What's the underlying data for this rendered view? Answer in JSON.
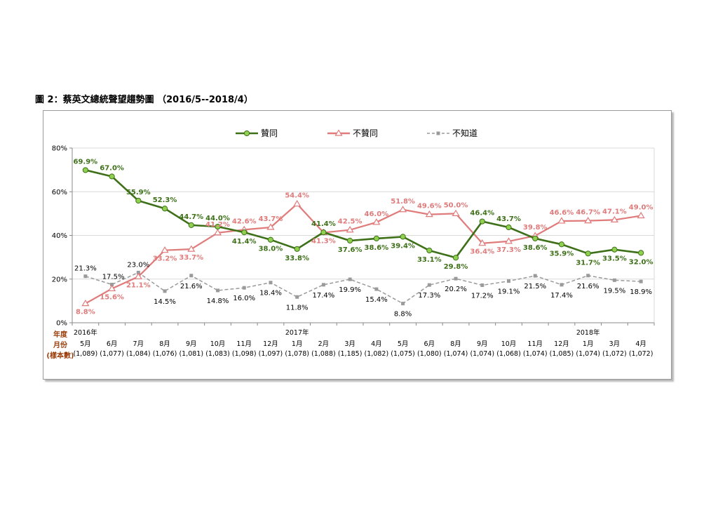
{
  "figure": {
    "title": "圖 2：蔡英文總統聲望趨勢圖 （2016/5--2018/4）"
  },
  "side_labels": [
    "年度",
    "月份",
    "(樣本數)"
  ],
  "colors": {
    "approve": "#3d7018",
    "approve_fill": "#8fd14f",
    "disapprove": "#e07b7b",
    "unknown": "#9a9a9a",
    "grid": "#d9d9d9"
  },
  "chart_data": {
    "type": "line",
    "title": "",
    "ylim": [
      0,
      80
    ],
    "yticks": [
      "0%",
      "20%",
      "40%",
      "60%",
      "80%"
    ],
    "grid": true,
    "legend_position": "top",
    "x": [
      {
        "year": "2016年",
        "month": "5月",
        "n": "(1,089)"
      },
      {
        "year": "",
        "month": "6月",
        "n": "(1,077)"
      },
      {
        "year": "",
        "month": "7月",
        "n": "(1,084)"
      },
      {
        "year": "",
        "month": "8月",
        "n": "(1,076)"
      },
      {
        "year": "",
        "month": "9月",
        "n": "(1,081)"
      },
      {
        "year": "",
        "month": "10月",
        "n": "(1,083)"
      },
      {
        "year": "",
        "month": "11月",
        "n": "(1,098)"
      },
      {
        "year": "",
        "month": "12月",
        "n": "(1,097)"
      },
      {
        "year": "2017年",
        "month": "1月",
        "n": "(1,078)"
      },
      {
        "year": "",
        "month": "2月",
        "n": "(1,088)"
      },
      {
        "year": "",
        "month": "3月",
        "n": "(1,185)"
      },
      {
        "year": "",
        "month": "4月",
        "n": "(1,082)"
      },
      {
        "year": "",
        "month": "5月",
        "n": "(1,075)"
      },
      {
        "year": "",
        "month": "6月",
        "n": "(1,080)"
      },
      {
        "year": "",
        "month": "8月",
        "n": "(1,074)"
      },
      {
        "year": "",
        "month": "9月",
        "n": "(1,074)"
      },
      {
        "year": "",
        "month": "10月",
        "n": "(1,068)"
      },
      {
        "year": "",
        "month": "11月",
        "n": "(1,074)"
      },
      {
        "year": "",
        "month": "12月",
        "n": "(1,085)"
      },
      {
        "year": "2018年",
        "month": "1月",
        "n": "(1,074)"
      },
      {
        "year": "",
        "month": "3月",
        "n": "(1,072)"
      },
      {
        "year": "",
        "month": "4月",
        "n": "(1,072)"
      }
    ],
    "series": [
      {
        "name": "贊同",
        "values": [
          69.9,
          67.0,
          55.9,
          52.3,
          44.7,
          44.0,
          41.4,
          38.0,
          33.8,
          41.4,
          37.6,
          38.6,
          39.4,
          33.1,
          29.8,
          46.4,
          43.7,
          38.6,
          35.9,
          31.7,
          33.5,
          32.0
        ],
        "labels": [
          "69.9%",
          "67.0%",
          "55.9%",
          "52.3%",
          "44.7%",
          "44.0%",
          "41.4%",
          "38.0%",
          "33.8%",
          "41.4%",
          "37.6%",
          "38.6%",
          "39.4%",
          "33.1%",
          "29.8%",
          "46.4%",
          "43.7%",
          "38.6%",
          "35.9%",
          "31.7%",
          "33.5%",
          "32.0%"
        ]
      },
      {
        "name": "不贊同",
        "values": [
          8.8,
          15.6,
          21.1,
          33.2,
          33.7,
          41.2,
          42.6,
          43.7,
          54.4,
          41.3,
          42.5,
          46.0,
          51.8,
          49.6,
          50.0,
          36.4,
          37.3,
          39.8,
          46.6,
          46.7,
          47.1,
          49.0
        ],
        "labels": [
          "8.8%",
          "15.6%",
          "21.1%",
          "33.2%",
          "33.7%",
          "41.2%",
          "42.6%",
          "43.7%",
          "54.4%",
          "41.3%",
          "42.5%",
          "46.0%",
          "51.8%",
          "49.6%",
          "50.0%",
          "36.4%",
          "37.3%",
          "39.8%",
          "46.6%",
          "46.7%",
          "47.1%",
          "49.0%"
        ]
      },
      {
        "name": "不知道",
        "values": [
          21.3,
          17.5,
          23.0,
          14.5,
          21.6,
          14.8,
          16.0,
          18.4,
          11.8,
          17.4,
          19.9,
          15.4,
          8.8,
          17.3,
          20.2,
          17.2,
          19.1,
          21.5,
          17.4,
          21.6,
          19.5,
          18.9
        ],
        "labels": [
          "21.3%",
          "17.5%",
          "23.0%",
          "14.5%",
          "21.6%",
          "14.8%",
          "16.0%",
          "18.4%",
          "11.8%",
          "17.4%",
          "19.9%",
          "15.4%",
          "8.8%",
          "17.3%",
          "20.2%",
          "17.2%",
          "19.1%",
          "21.5%",
          "17.4%",
          "21.6%",
          "19.5%",
          "18.9%"
        ]
      }
    ]
  }
}
